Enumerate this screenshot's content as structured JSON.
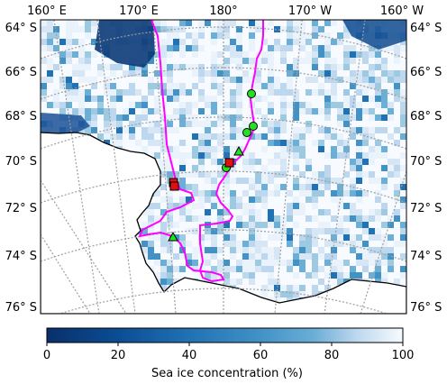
{
  "map": {
    "top_lon_labels": [
      "160° E",
      "170° E",
      "180°",
      "170° W",
      "160° W"
    ],
    "left_lat_labels": [
      "64° S",
      "66° S",
      "68° S",
      "70° S",
      "72° S",
      "74° S",
      "76° S"
    ],
    "right_lat_labels": [
      "64° S",
      "66° S",
      "68° S",
      "70° S",
      "72° S",
      "74° S",
      "76° S"
    ]
  },
  "colorbar": {
    "label": "Sea ice concentration (%)",
    "ticks": [
      "0",
      "20",
      "40",
      "60",
      "80",
      "100"
    ],
    "min": 0,
    "max": 100
  },
  "legend_markers": {
    "circle_color": "#22e022",
    "triangle_color": "#22e022",
    "square_color": "#e01010",
    "track_color": "#ff00ff"
  }
}
